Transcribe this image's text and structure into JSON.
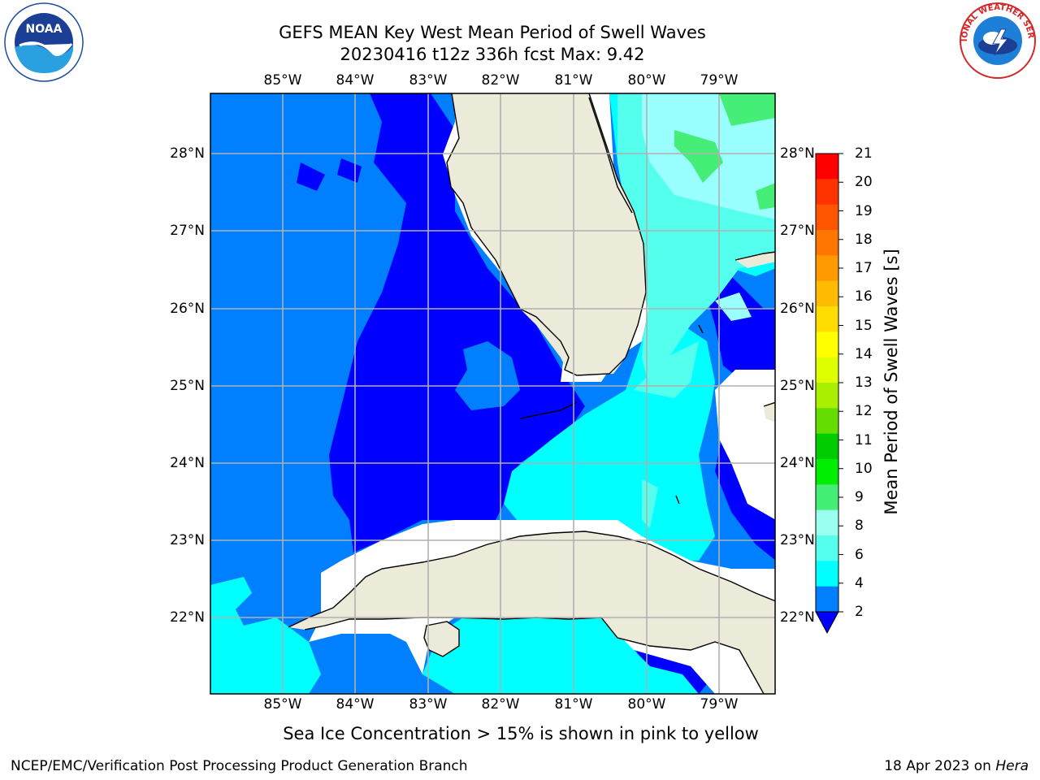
{
  "title": {
    "line1": "GEFS MEAN Key West Mean Period of Swell Waves",
    "line2": "20230416 t12z 336h fcst   Max: 9.42"
  },
  "longitudes": [
    "85°W",
    "84°W",
    "83°W",
    "82°W",
    "81°W",
    "80°W",
    "79°W"
  ],
  "latitudes": [
    "28°N",
    "27°N",
    "26°N",
    "25°N",
    "24°N",
    "23°N",
    "22°N"
  ],
  "colorbar": {
    "label": "Mean Period of Swell Waves [s]",
    "ticks": [
      "21",
      "20",
      "19",
      "18",
      "17",
      "16",
      "15",
      "14",
      "13",
      "12",
      "11",
      "10",
      "9",
      "8",
      "6",
      "4",
      "2"
    ],
    "colors": [
      "#ff0000",
      "#ff3300",
      "#ff5500",
      "#ff7700",
      "#ff9900",
      "#ffbb00",
      "#ffdd00",
      "#ffff00",
      "#ddff00",
      "#aaee00",
      "#66dd00",
      "#00cc00",
      "#00ee00",
      "#44ee77",
      "#99ffee",
      "#55ffee",
      "#00ffff",
      "#0080ff"
    ],
    "extend_color": "#0000ff"
  },
  "palette": {
    "land": "#ecebd9",
    "period_2_4": "#0080ff",
    "period_lt_2": "#0000ff",
    "period_4_6": "#00ffff",
    "period_6_8": "#55ffee",
    "period_8_9": "#99ffff",
    "period_9_10": "#44ee77",
    "grid": "#b0b0b0"
  },
  "footnote": "Sea Ice Concentration > 15% is shown in pink to yellow",
  "credit": "NCEP/EMC/Verification Post Processing Product Generation Branch",
  "date": {
    "text": "18 Apr 2023 on ",
    "host": "Hera"
  },
  "logos": {
    "noaa": "NOAA",
    "nws": "NATIONAL WEATHER SERVICE"
  }
}
